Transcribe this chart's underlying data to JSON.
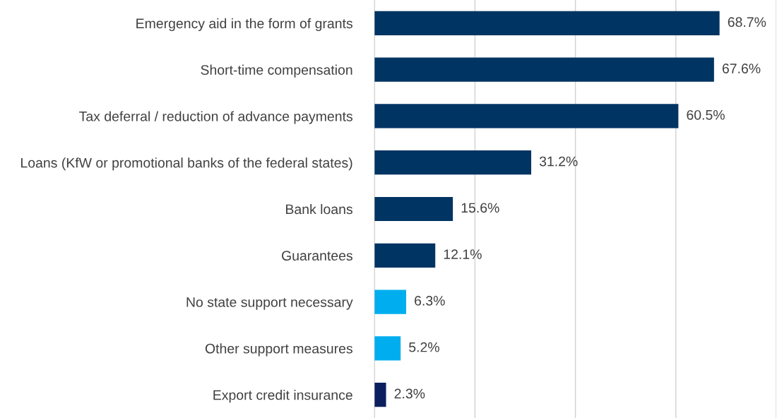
{
  "chart_data": {
    "type": "bar",
    "orientation": "horizontal",
    "categories": [
      "Emergency aid in the form of grants",
      "Short-time compensation",
      "Tax deferral / reduction of advance payments",
      "Loans (KfW or promotional banks of the federal states)",
      "Bank loans",
      "Guarantees",
      "No state support necessary",
      "Other support measures",
      "Export credit insurance"
    ],
    "values": [
      68.7,
      67.6,
      60.5,
      31.2,
      15.6,
      12.1,
      6.3,
      5.2,
      2.3
    ],
    "colors": [
      "#003462",
      "#003462",
      "#003462",
      "#003462",
      "#003462",
      "#003462",
      "#00aeef",
      "#00aeef",
      "#0b1f5e"
    ],
    "value_labels": [
      "68.7%",
      "67.6%",
      "60.5%",
      "31.2%",
      "15.6%",
      "12.1%",
      "6.3%",
      "5.2%",
      "2.3%"
    ],
    "xlim": [
      0,
      80
    ],
    "xticks": [
      {
        "value": 0,
        "label": null
      },
      {
        "value": 20,
        "label": null
      },
      {
        "value": 40,
        "label": null
      },
      {
        "value": 60,
        "label": null
      },
      {
        "value": 80,
        "label": null
      }
    ],
    "grid": "x",
    "tick_labels": "y"
  }
}
